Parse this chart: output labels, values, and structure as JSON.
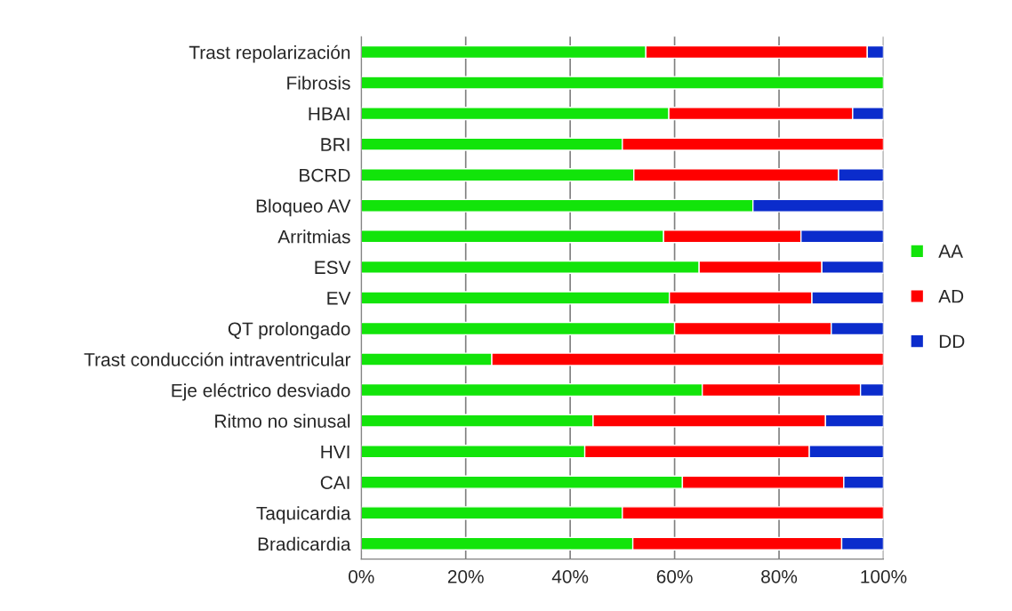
{
  "chart_data": {
    "type": "bar",
    "orientation": "horizontal",
    "stacked": true,
    "categories": [
      "Trast repolarización",
      "Fibrosis",
      "HBAI",
      "BRI",
      "BCRD",
      "Bloqueo AV",
      "Arritmias",
      "ESV",
      "EV",
      "QT prolongado",
      "Trast conducción intraventricular",
      "Eje eléctrico desviado",
      "Ritmo no sinusal",
      "HVI",
      "CAI",
      "Taquicardia",
      "Bradicardia"
    ],
    "series": [
      {
        "name": "AA",
        "color": "#12e40a",
        "values": [
          54.5,
          100,
          58.9,
          50,
          52.2,
          75,
          57.9,
          64.7,
          59,
          60,
          25,
          65.3,
          44.4,
          42.8,
          61.5,
          50,
          52
        ]
      },
      {
        "name": "AD",
        "color": "#ff0000",
        "values": [
          42.4,
          0,
          35.2,
          50,
          39.2,
          0,
          26.3,
          23.5,
          27.3,
          30,
          75,
          30.3,
          44.5,
          43,
          30.9,
          50,
          40
        ]
      },
      {
        "name": "DD",
        "color": "#0b2ccc",
        "values": [
          3.1,
          0,
          5.9,
          0,
          8.6,
          25,
          15.8,
          11.8,
          13.7,
          10,
          0,
          4.4,
          11.1,
          14.2,
          7.6,
          0,
          8
        ]
      }
    ],
    "xlim": [
      0,
      100
    ],
    "xticks": [
      {
        "value": 0,
        "label": "0%"
      },
      {
        "value": 20,
        "label": "20%"
      },
      {
        "value": 40,
        "label": "40%"
      },
      {
        "value": 60,
        "label": "60%"
      },
      {
        "value": 80,
        "label": "80%"
      },
      {
        "value": 100,
        "label": "100%"
      }
    ],
    "grid": "x",
    "legend": "right"
  }
}
